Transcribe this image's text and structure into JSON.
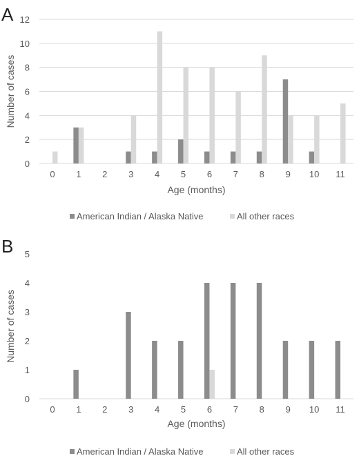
{
  "chart_data": [
    {
      "type": "bar",
      "panel_label": "A",
      "title": "",
      "xlabel": "Age (months)",
      "ylabel": "Number of cases",
      "categories": [
        "0",
        "1",
        "2",
        "3",
        "4",
        "5",
        "6",
        "7",
        "8",
        "9",
        "10",
        "11"
      ],
      "ylim": [
        0,
        12
      ],
      "yticks": [
        "0",
        "2",
        "4",
        "6",
        "8",
        "10",
        "12"
      ],
      "grid": true,
      "legend_placement": "bottom",
      "series": [
        {
          "name": "American Indian / Alaska Native",
          "color": "#8c8c8c",
          "values": [
            0,
            3,
            0,
            1,
            1,
            2,
            1,
            1,
            1,
            7,
            1,
            0
          ]
        },
        {
          "name": "All other races",
          "color": "#d9d9d9",
          "values": [
            1,
            3,
            0,
            4,
            11,
            8,
            8,
            6,
            9,
            4,
            4,
            5
          ]
        }
      ]
    },
    {
      "type": "bar",
      "panel_label": "B",
      "title": "",
      "xlabel": "Age (months)",
      "ylabel": "Number of cases",
      "categories": [
        "0",
        "1",
        "2",
        "3",
        "4",
        "5",
        "6",
        "7",
        "8",
        "9",
        "10",
        "11"
      ],
      "ylim": [
        0,
        5
      ],
      "yticks": [
        "0",
        "1",
        "2",
        "3",
        "4",
        "5"
      ],
      "grid": false,
      "legend_placement": "bottom",
      "series": [
        {
          "name": "American Indian / Alaska Native",
          "color": "#8c8c8c",
          "values": [
            0,
            1,
            0,
            3,
            2,
            2,
            4,
            4,
            4,
            2,
            2,
            2
          ]
        },
        {
          "name": "All other races",
          "color": "#d9d9d9",
          "values": [
            0,
            0,
            0,
            0,
            0,
            0,
            1,
            0,
            0,
            0,
            0,
            0
          ]
        }
      ]
    }
  ]
}
